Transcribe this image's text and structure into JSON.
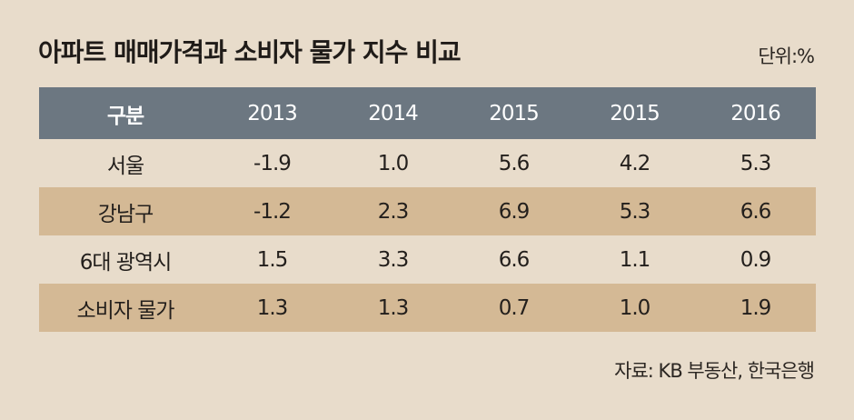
{
  "title": "아파트 매매가격과 소비자 물가 지수 비교",
  "unit": "단위:%",
  "table": {
    "header": [
      "구분",
      "2013",
      "2014",
      "2015",
      "2015",
      "2016"
    ],
    "rows": [
      [
        "서울",
        "-1.9",
        "1.0",
        "5.6",
        "4.2",
        "5.3"
      ],
      [
        "강남구",
        "-1.2",
        "2.3",
        "6.9",
        "5.3",
        "6.6"
      ],
      [
        "6대 광역시",
        "1.5",
        "3.3",
        "6.6",
        "1.1",
        "0.9"
      ],
      [
        "소비자 물가",
        "1.3",
        "1.3",
        "0.7",
        "1.0",
        "1.9"
      ]
    ]
  },
  "source": "자료: KB 부동산, 한국은행",
  "colors": {
    "background": "#e8dccb",
    "header_fill": "#6c7781",
    "shaded_row": "#d4b995"
  }
}
